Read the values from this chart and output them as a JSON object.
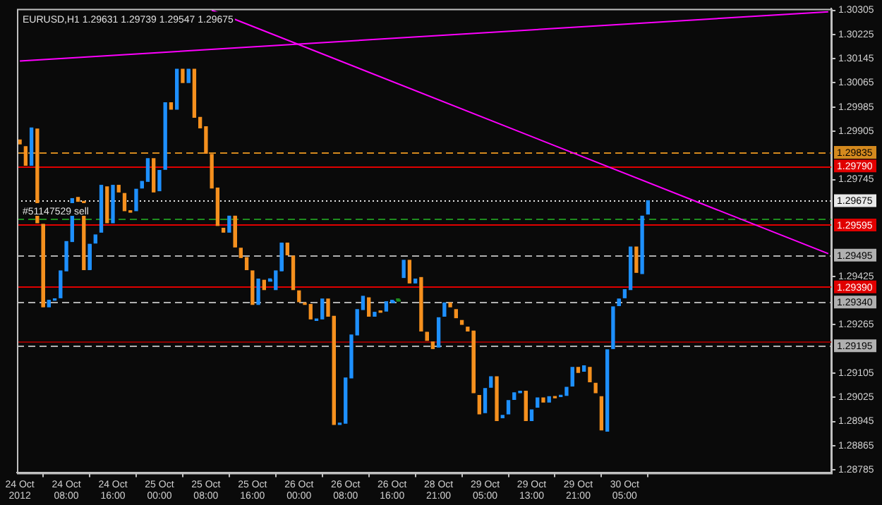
{
  "chart_data": {
    "type": "candlestick",
    "title": "EURUSD,H1 1.29631 1.29739 1.29547 1.29675",
    "categories": [
      "24 Oct 2012",
      null,
      null,
      null,
      null,
      null,
      null,
      null,
      "24 Oct 08:00",
      null,
      null,
      null,
      null,
      null,
      null,
      null,
      "24 Oct 16:00",
      null,
      null,
      null,
      null,
      null,
      null,
      null,
      "25 Oct 00:00",
      null,
      null,
      null,
      null,
      null,
      null,
      null,
      "25 Oct 08:00",
      null,
      null,
      null,
      null,
      null,
      null,
      null,
      "25 Oct 16:00",
      null,
      null,
      null,
      null,
      null,
      null,
      null,
      "26 Oct 00:00",
      null,
      null,
      null,
      null,
      null,
      null,
      null,
      "26 Oct 08:00",
      null,
      null,
      null,
      null,
      null,
      null,
      null,
      "26 Oct 16:00",
      null,
      null,
      null,
      null,
      null,
      null,
      null,
      "28 Oct 21:00",
      null,
      null,
      null,
      null,
      null,
      null,
      null,
      "29 Oct 05:00",
      null,
      null,
      null,
      null,
      null,
      null,
      null,
      "29 Oct 13:00",
      null,
      null,
      null,
      null,
      null,
      null,
      null,
      "29 Oct 21:00",
      null,
      null,
      null,
      null,
      null,
      null,
      null,
      "30 Oct 05:00",
      null,
      null,
      null,
      null,
      null,
      null,
      null,
      null,
      null,
      null,
      null,
      null,
      null,
      null,
      null,
      null,
      null,
      null,
      null,
      null,
      null,
      null,
      null,
      null,
      null,
      null,
      null,
      null,
      null,
      null,
      null,
      null,
      null,
      null,
      null
    ],
    "ohlc": [
      [
        1.29876,
        1.29876,
        1.29863,
        1.29863
      ],
      [
        1.29854,
        1.29854,
        1.29792,
        1.29792
      ],
      [
        1.29792,
        1.29916,
        1.29792,
        1.29916
      ],
      [
        1.29912,
        1.29912,
        1.29602,
        1.29602
      ],
      [
        1.29597,
        1.29597,
        1.29324,
        1.29324
      ],
      [
        1.29324,
        1.29346,
        1.29324,
        1.29346
      ],
      [
        1.29346,
        1.2935,
        1.29346,
        1.2935
      ],
      [
        1.29354,
        1.29443,
        1.29354,
        1.29443
      ],
      [
        1.29443,
        1.2954,
        1.29443,
        1.2954
      ],
      [
        1.2954,
        1.29682,
        1.2954,
        1.29682
      ],
      [
        1.29686,
        1.29686,
        1.29673,
        1.29673
      ],
      [
        1.29673,
        1.29673,
        1.29447,
        1.29447
      ],
      [
        1.29447,
        1.29531,
        1.29447,
        1.29531
      ],
      [
        1.29535,
        1.29562,
        1.29535,
        1.29562
      ],
      [
        1.29571,
        1.29726,
        1.29571,
        1.29726
      ],
      [
        1.29721,
        1.29721,
        1.29602,
        1.29602
      ],
      [
        1.29602,
        1.29726,
        1.29602,
        1.29726
      ],
      [
        1.29726,
        1.29726,
        1.29704,
        1.29704
      ],
      [
        1.29699,
        1.29699,
        1.29642,
        1.29642
      ],
      [
        1.29642,
        1.29642,
        1.29637,
        1.29637
      ],
      [
        1.29642,
        1.29713,
        1.29642,
        1.29713
      ],
      [
        1.29717,
        1.29739,
        1.29717,
        1.29739
      ],
      [
        1.29739,
        1.29814,
        1.29739,
        1.29814
      ],
      [
        1.29814,
        1.29814,
        1.29704,
        1.29704
      ],
      [
        1.29708,
        1.29775,
        1.29708,
        1.29775
      ],
      [
        1.29779,
        1.29999,
        1.29779,
        1.29999
      ],
      [
        1.29999,
        1.29999,
        1.29978,
        1.29978
      ],
      [
        1.29978,
        1.3011,
        1.29978,
        1.3011
      ],
      [
        1.3011,
        1.3011,
        1.30066,
        1.30066
      ],
      [
        1.30066,
        1.3011,
        1.30066,
        1.3011
      ],
      [
        1.3011,
        1.3011,
        1.29951,
        1.29951
      ],
      [
        1.29951,
        1.29951,
        1.29916,
        1.29916
      ],
      [
        1.2992,
        1.2992,
        1.29832,
        1.29832
      ],
      [
        1.29828,
        1.29828,
        1.29717,
        1.29717
      ],
      [
        1.29717,
        1.29717,
        1.29593,
        1.29593
      ],
      [
        1.29584,
        1.29584,
        1.29571,
        1.29571
      ],
      [
        1.29571,
        1.29624,
        1.29571,
        1.29624
      ],
      [
        1.29624,
        1.29624,
        1.29522,
        1.29522
      ],
      [
        1.29518,
        1.29518,
        1.29487,
        1.29487
      ],
      [
        1.29487,
        1.29487,
        1.29447,
        1.29447
      ],
      [
        1.29443,
        1.29443,
        1.29332,
        1.29332
      ],
      [
        1.29332,
        1.29416,
        1.29332,
        1.29416
      ],
      [
        1.29412,
        1.29412,
        1.29381,
        1.29381
      ],
      [
        1.29412,
        1.29412,
        1.29412,
        1.29412
      ],
      [
        1.29381,
        1.29443,
        1.29381,
        1.29443
      ],
      [
        1.29443,
        1.29535,
        1.29443,
        1.29535
      ],
      [
        1.29535,
        1.29535,
        1.29496,
        1.29496
      ],
      [
        1.29492,
        1.29492,
        1.29381,
        1.29381
      ],
      [
        1.29377,
        1.29377,
        1.29341,
        1.29341
      ],
      [
        1.29337,
        1.29337,
        1.29332,
        1.29332
      ],
      [
        1.29332,
        1.29332,
        1.29284,
        1.29284
      ],
      [
        1.29279,
        1.29284,
        1.29279,
        1.29284
      ],
      [
        1.29284,
        1.2935,
        1.29284,
        1.2935
      ],
      [
        1.2935,
        1.2935,
        1.29293,
        1.29293
      ],
      [
        1.29293,
        1.29293,
        1.28935,
        1.28935
      ],
      [
        1.28935,
        1.28939,
        1.28935,
        1.28939
      ],
      [
        1.28939,
        1.29089,
        1.28939,
        1.29089
      ],
      [
        1.29089,
        1.29231,
        1.29089,
        1.29231
      ],
      [
        1.29231,
        1.29315,
        1.29231,
        1.29315
      ],
      [
        1.29315,
        1.29359,
        1.29315,
        1.29359
      ],
      [
        1.29354,
        1.29354,
        1.29293,
        1.29293
      ],
      [
        1.29293,
        1.29306,
        1.29293,
        1.29306
      ],
      [
        1.2931,
        1.2931,
        1.29306,
        1.29306
      ],
      [
        1.2931,
        1.29341,
        1.2931,
        1.29341
      ],
      [
        1.29341,
        1.29341,
        1.29341,
        1.29341
      ],
      [
        1.29346,
        1.29346,
        1.29346,
        1.29346
      ],
      [
        1.29421,
        1.29478,
        1.29421,
        1.29478
      ],
      [
        1.29478,
        1.29478,
        1.29403,
        1.29403
      ],
      [
        1.29403,
        1.29416,
        1.29403,
        1.29416
      ],
      [
        1.29421,
        1.29421,
        1.29244,
        1.29244
      ],
      [
        1.2924,
        1.2924,
        1.29213,
        1.29213
      ],
      [
        1.29208,
        1.29208,
        1.29186,
        1.29186
      ],
      [
        1.29191,
        1.29288,
        1.29191,
        1.29288
      ],
      [
        1.29293,
        1.29337,
        1.29293,
        1.29337
      ],
      [
        1.29337,
        1.29337,
        1.29324,
        1.29324
      ],
      [
        1.29315,
        1.29315,
        1.29288,
        1.29288
      ],
      [
        1.29279,
        1.29279,
        1.29266,
        1.29266
      ],
      [
        1.29257,
        1.29257,
        1.29244,
        1.29244
      ],
      [
        1.29244,
        1.29244,
        1.2904,
        1.2904
      ],
      [
        1.29031,
        1.29031,
        1.2897,
        1.2897
      ],
      [
        1.28974,
        1.29054,
        1.28974,
        1.29054
      ],
      [
        1.29058,
        1.29093,
        1.29058,
        1.29093
      ],
      [
        1.29093,
        1.29093,
        1.28948,
        1.28948
      ],
      [
        1.28957,
        1.28965,
        1.28957,
        1.28965
      ],
      [
        1.2897,
        1.29014,
        1.2897,
        1.29014
      ],
      [
        1.29018,
        1.2904,
        1.29018,
        1.2904
      ],
      [
        1.2904,
        1.29045,
        1.2904,
        1.29045
      ],
      [
        1.29045,
        1.29045,
        1.28948,
        1.28948
      ],
      [
        1.28948,
        1.28983,
        1.28948,
        1.28983
      ],
      [
        1.28992,
        1.29023,
        1.28992,
        1.29023
      ],
      [
        1.29023,
        1.29023,
        1.29009,
        1.29009
      ],
      [
        1.29009,
        1.29027,
        1.29009,
        1.29027
      ],
      [
        1.29027,
        1.29027,
        1.29023,
        1.29023
      ],
      [
        1.29027,
        1.29031,
        1.29027,
        1.29031
      ],
      [
        1.29031,
        1.29058,
        1.29031,
        1.29058
      ],
      [
        1.29062,
        1.29124,
        1.29062,
        1.29124
      ],
      [
        1.29124,
        1.29124,
        1.29107,
        1.29107
      ],
      [
        1.29111,
        1.29129,
        1.29111,
        1.29129
      ],
      [
        1.29124,
        1.29124,
        1.29076,
        1.29076
      ],
      [
        1.29071,
        1.29071,
        1.2904,
        1.2904
      ],
      [
        1.29027,
        1.29027,
        1.28917,
        1.28917
      ],
      [
        1.28913,
        1.29182,
        1.28913,
        1.29182
      ],
      [
        1.29186,
        1.29324,
        1.29186,
        1.29324
      ],
      [
        1.29328,
        1.2935,
        1.29328,
        1.2935
      ],
      [
        1.29354,
        1.29381,
        1.29354,
        1.29381
      ],
      [
        1.29381,
        1.29522,
        1.29381,
        1.29522
      ],
      [
        1.29522,
        1.29522,
        1.29438,
        1.29438
      ],
      [
        1.29434,
        1.29624,
        1.29434,
        1.29624
      ],
      [
        1.29631,
        1.29675,
        1.29631,
        1.29675
      ],
      null,
      null,
      null,
      null,
      null,
      null,
      null,
      null,
      null,
      null,
      null,
      null,
      null,
      null,
      null,
      null,
      null,
      null,
      null,
      null,
      null,
      null,
      null,
      null,
      null,
      null,
      null,
      null,
      null,
      null,
      null
    ],
    "colors": [
      "#f5901e",
      "#f5901e",
      "#1e90ff",
      "#f5901e",
      "#f5901e",
      "#1e90ff",
      "#1e90ff",
      "#1e90ff",
      "#1e90ff",
      "#1e90ff",
      "#f5901e",
      "#f5901e",
      "#1e90ff",
      "#1e90ff",
      "#1e90ff",
      "#f5901e",
      "#1e90ff",
      "#f5901e",
      "#f5901e",
      "#f5901e",
      "#1e90ff",
      "#1e90ff",
      "#1e90ff",
      "#f5901e",
      "#1e90ff",
      "#1e90ff",
      "#f5901e",
      "#1e90ff",
      "#f5901e",
      "#1e90ff",
      "#f5901e",
      "#f5901e",
      "#f5901e",
      "#f5901e",
      "#f5901e",
      "#f5901e",
      "#1e90ff",
      "#f5901e",
      "#f5901e",
      "#f5901e",
      "#f5901e",
      "#1e90ff",
      "#f5901e",
      "#1e90ff",
      "#1e90ff",
      "#1e90ff",
      "#f5901e",
      "#f5901e",
      "#f5901e",
      "#f5901e",
      "#f5901e",
      "#1e90ff",
      "#1e90ff",
      "#f5901e",
      "#f5901e",
      "#1e90ff",
      "#1e90ff",
      "#1e90ff",
      "#1e90ff",
      "#1e90ff",
      "#f5901e",
      "#1e90ff",
      "#f5901e",
      "#1e90ff",
      "#1e90ff",
      "#1e8c1e",
      "#1e90ff",
      "#f5901e",
      "#1e90ff",
      "#f5901e",
      "#f5901e",
      "#f5901e",
      "#1e90ff",
      "#1e90ff",
      "#f5901e",
      "#f5901e",
      "#f5901e",
      "#f5901e",
      "#f5901e",
      "#f5901e",
      "#1e90ff",
      "#1e90ff",
      "#f5901e",
      "#1e90ff",
      "#1e90ff",
      "#1e90ff",
      "#1e90ff",
      "#f5901e",
      "#1e90ff",
      "#1e90ff",
      "#f5901e",
      "#1e90ff",
      "#f5901e",
      "#1e90ff",
      "#1e90ff",
      "#1e90ff",
      "#f5901e",
      "#1e90ff",
      "#f5901e",
      "#f5901e",
      "#f5901e",
      "#1e90ff",
      "#1e90ff",
      "#1e90ff",
      "#1e90ff",
      "#1e90ff",
      "#f5901e",
      "#1e90ff",
      "#1e90ff",
      null,
      null,
      null,
      null,
      null,
      null,
      null,
      null,
      null,
      null,
      null,
      null,
      null,
      null,
      null,
      null,
      null,
      null,
      null,
      null,
      null,
      null,
      null,
      null,
      null,
      null,
      null,
      null,
      null,
      null,
      null
    ],
    "series": [
      {
        "type": "line",
        "color": "#ff00ff",
        "values": [
          1.30137,
          null,
          null,
          null,
          null,
          null,
          null,
          null,
          null,
          null,
          null,
          null,
          null,
          null,
          null,
          null,
          null,
          null,
          null,
          null,
          null,
          null,
          null,
          null,
          null,
          null,
          null,
          null,
          null,
          null,
          null,
          null,
          null,
          null,
          null,
          null,
          null,
          null,
          null,
          null,
          null,
          null,
          null,
          null,
          null,
          null,
          null,
          null,
          null,
          null,
          null,
          null,
          null,
          null,
          null,
          null,
          null,
          null,
          null,
          null,
          null,
          null,
          null,
          null,
          null,
          null,
          null,
          null,
          null,
          null,
          null,
          null,
          null,
          null,
          null,
          null,
          null,
          null,
          null,
          null,
          null,
          null,
          null,
          null,
          null,
          null,
          null,
          null,
          null,
          null,
          null,
          null,
          null,
          null,
          null,
          null,
          null,
          null,
          null,
          null,
          null,
          null,
          null,
          null,
          null,
          null,
          null,
          null,
          null,
          null,
          null,
          null,
          null,
          null,
          null,
          null,
          null,
          null,
          null,
          null,
          null,
          null,
          null,
          null,
          null,
          null,
          null,
          null,
          null,
          null,
          null,
          null,
          null,
          null,
          null,
          null,
          null,
          null,
          null,
          1.303
        ]
      },
      {
        "type": "line",
        "color": "#ff00ff",
        "values": [
          null,
          null,
          null,
          null,
          null,
          null,
          null,
          null,
          null,
          null,
          null,
          null,
          null,
          null,
          null,
          null,
          null,
          null,
          null,
          null,
          null,
          null,
          null,
          null,
          null,
          null,
          null,
          null,
          null,
          null,
          null,
          null,
          null,
          1.30305,
          null,
          null,
          null,
          null,
          null,
          null,
          null,
          null,
          null,
          null,
          null,
          null,
          null,
          null,
          null,
          null,
          null,
          null,
          null,
          null,
          null,
          null,
          null,
          null,
          null,
          null,
          null,
          null,
          null,
          null,
          null,
          null,
          null,
          null,
          null,
          null,
          null,
          null,
          null,
          null,
          null,
          null,
          null,
          null,
          null,
          null,
          null,
          null,
          null,
          null,
          null,
          null,
          null,
          null,
          null,
          null,
          null,
          null,
          null,
          null,
          null,
          null,
          null,
          null,
          null,
          null,
          null,
          null,
          null,
          null,
          null,
          null,
          null,
          null,
          null,
          null,
          null,
          null,
          null,
          null,
          null,
          null,
          null,
          null,
          null,
          null,
          null,
          null,
          null,
          null,
          null,
          null,
          null,
          null,
          null,
          null,
          null,
          null,
          null,
          null,
          null,
          null,
          null,
          null,
          null,
          1.295
        ]
      }
    ],
    "ylim": [
      1.28775,
      1.3031
    ],
    "yticks": [
      1.28785,
      1.28865,
      1.28945,
      1.29025,
      1.29105,
      1.29265,
      1.29425,
      1.29745,
      1.29905,
      1.29985,
      1.30065,
      1.30145,
      1.30225,
      1.30305
    ],
    "ref_lines": [
      {
        "axis": "y",
        "value": 1.29835,
        "label": "1.29835",
        "color": "#d4891e",
        "line_style": "dashed"
      },
      {
        "axis": "y",
        "value": 1.2979,
        "label": "1.29790",
        "color": "#e00000",
        "line_style": "solid"
      },
      {
        "axis": "y",
        "value": 1.29675,
        "label": "1.29675",
        "color": "#e8e8e8",
        "line_style": "dotted"
      },
      {
        "axis": "y",
        "value": 1.29615,
        "color": "#1e8c1e",
        "line_style": "dashed"
      },
      {
        "axis": "y",
        "value": 1.29595,
        "label": "1.29595",
        "color": "#e00000",
        "line_style": "solid"
      },
      {
        "axis": "y",
        "value": 1.29495,
        "label": "1.29495",
        "color": "#b0b0b0",
        "line_style": "dashed"
      },
      {
        "axis": "y",
        "value": 1.2939,
        "label": "1.29390",
        "color": "#e00000",
        "line_style": "solid"
      },
      {
        "axis": "y",
        "value": 1.2934,
        "label": "1.29340",
        "color": "#b0b0b0",
        "line_style": "dashed"
      },
      {
        "axis": "y",
        "value": 1.2921,
        "color": "#900000",
        "line_style": "solid"
      },
      {
        "axis": "y",
        "value": 1.29195,
        "label": "1.29195",
        "color": "#b0b0b0",
        "line_style": "dashed"
      }
    ],
    "annotations": [
      {
        "text": "#51147529 sell",
        "y": 1.2963
      }
    ],
    "grid": false,
    "legend": false
  }
}
